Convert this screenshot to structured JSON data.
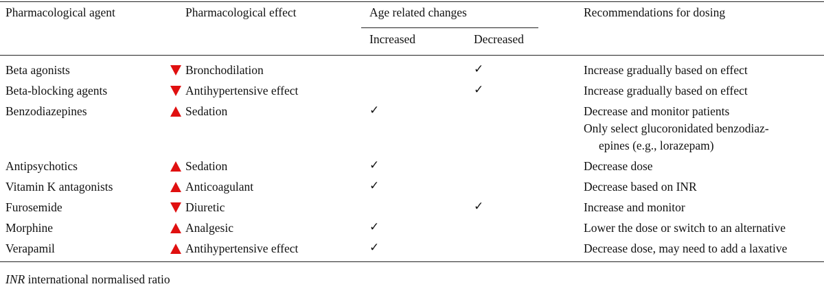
{
  "header": {
    "agent": "Pharmacological agent",
    "effect": "Pharmacological effect",
    "age_changes": "Age related changes",
    "increased": "Increased",
    "decreased": "Decreased",
    "recommendations": "Recommendations for dosing"
  },
  "check_mark": "✓",
  "rows": [
    {
      "agent": "Beta agonists",
      "direction": "decrease",
      "effect": "Bronchodilation",
      "increased": false,
      "decreased": true,
      "rec": [
        "Increase gradually based on effect"
      ]
    },
    {
      "agent": "Beta-blocking agents",
      "direction": "decrease",
      "effect": "Antihypertensive effect",
      "increased": false,
      "decreased": true,
      "rec": [
        "Increase gradually based on effect"
      ]
    },
    {
      "agent": "Benzodiazepines",
      "direction": "increase",
      "effect": "Sedation",
      "increased": true,
      "decreased": false,
      "rec": [
        "Decrease and monitor patients",
        "Only select glucoronidated benzodiaz-",
        "epines (e.g., lorazepam)"
      ]
    },
    {
      "agent": "Antipsychotics",
      "direction": "increase",
      "effect": "Sedation",
      "increased": true,
      "decreased": false,
      "rec": [
        "Decrease dose"
      ]
    },
    {
      "agent": "Vitamin K antagonists",
      "direction": "increase",
      "effect": "Anticoagulant",
      "increased": true,
      "decreased": false,
      "rec": [
        "Decrease based on INR"
      ]
    },
    {
      "agent": "Furosemide",
      "direction": "decrease",
      "effect": "Diuretic",
      "increased": false,
      "decreased": true,
      "rec": [
        "Increase and monitor"
      ]
    },
    {
      "agent": "Morphine",
      "direction": "increase",
      "effect": "Analgesic",
      "increased": true,
      "decreased": false,
      "rec": [
        "Lower the dose or switch to an alternative"
      ]
    },
    {
      "agent": "Verapamil",
      "direction": "increase",
      "effect": "Antihypertensive effect",
      "increased": true,
      "decreased": false,
      "rec": [
        "Decrease dose, may need to add a laxative"
      ]
    }
  ],
  "footnote": {
    "abbr": "INR",
    "text": " international normalised ratio"
  }
}
